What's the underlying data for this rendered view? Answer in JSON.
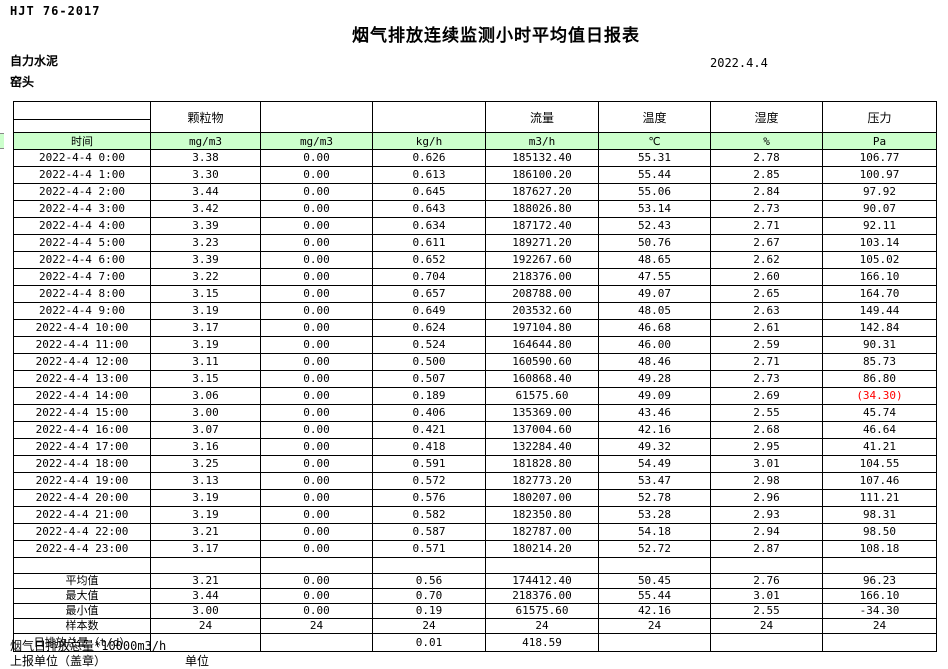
{
  "doc": {
    "standard": "HJT  76-2017",
    "title": "烟气排放连续监测小时平均值日报表",
    "company": "自力水泥",
    "station": "窑头",
    "date": "2022.4.4"
  },
  "table": {
    "group_headers": [
      "",
      "颗粒物",
      "",
      "",
      "流量",
      "温度",
      "湿度",
      "压力"
    ],
    "unit_headers": [
      "时间",
      "mg/m3",
      "mg/m3",
      "kg/h",
      "m3/h",
      "℃",
      "%",
      "Pa"
    ],
    "rows": [
      {
        "time": "2022-4-4 0:00",
        "values": [
          "3.38",
          "0.00",
          "0.626",
          "185132.40",
          "55.31",
          "2.78",
          "106.77"
        ]
      },
      {
        "time": "2022-4-4 1:00",
        "values": [
          "3.30",
          "0.00",
          "0.613",
          "186100.20",
          "55.44",
          "2.85",
          "100.97"
        ]
      },
      {
        "time": "2022-4-4 2:00",
        "values": [
          "3.44",
          "0.00",
          "0.645",
          "187627.20",
          "55.06",
          "2.84",
          "97.92"
        ]
      },
      {
        "time": "2022-4-4 3:00",
        "values": [
          "3.42",
          "0.00",
          "0.643",
          "188026.80",
          "53.14",
          "2.73",
          "90.07"
        ]
      },
      {
        "time": "2022-4-4 4:00",
        "values": [
          "3.39",
          "0.00",
          "0.634",
          "187172.40",
          "52.43",
          "2.71",
          "92.11"
        ]
      },
      {
        "time": "2022-4-4 5:00",
        "values": [
          "3.23",
          "0.00",
          "0.611",
          "189271.20",
          "50.76",
          "2.67",
          "103.14"
        ]
      },
      {
        "time": "2022-4-4 6:00",
        "values": [
          "3.39",
          "0.00",
          "0.652",
          "192267.60",
          "48.65",
          "2.62",
          "105.02"
        ]
      },
      {
        "time": "2022-4-4 7:00",
        "values": [
          "3.22",
          "0.00",
          "0.704",
          "218376.00",
          "47.55",
          "2.60",
          "166.10"
        ]
      },
      {
        "time": "2022-4-4 8:00",
        "values": [
          "3.15",
          "0.00",
          "0.657",
          "208788.00",
          "49.07",
          "2.65",
          "164.70"
        ]
      },
      {
        "time": "2022-4-4 9:00",
        "values": [
          "3.19",
          "0.00",
          "0.649",
          "203532.60",
          "48.05",
          "2.63",
          "149.44"
        ]
      },
      {
        "time": "2022-4-4 10:00",
        "values": [
          "3.17",
          "0.00",
          "0.624",
          "197104.80",
          "46.68",
          "2.61",
          "142.84"
        ]
      },
      {
        "time": "2022-4-4 11:00",
        "values": [
          "3.19",
          "0.00",
          "0.524",
          "164644.80",
          "46.00",
          "2.59",
          "90.31"
        ]
      },
      {
        "time": "2022-4-4 12:00",
        "values": [
          "3.11",
          "0.00",
          "0.500",
          "160590.60",
          "48.46",
          "2.71",
          "85.73"
        ]
      },
      {
        "time": "2022-4-4 13:00",
        "values": [
          "3.15",
          "0.00",
          "0.507",
          "160868.40",
          "49.28",
          "2.73",
          "86.80"
        ]
      },
      {
        "time": "2022-4-4 14:00",
        "values": [
          "3.06",
          "0.00",
          "0.189",
          "61575.60",
          "49.09",
          "2.69",
          "(34.30)"
        ],
        "red_value_indices": [
          6
        ]
      },
      {
        "time": "2022-4-4 15:00",
        "values": [
          "3.00",
          "0.00",
          "0.406",
          "135369.00",
          "43.46",
          "2.55",
          "45.74"
        ]
      },
      {
        "time": "2022-4-4 16:00",
        "values": [
          "3.07",
          "0.00",
          "0.421",
          "137004.60",
          "42.16",
          "2.68",
          "46.64"
        ]
      },
      {
        "time": "2022-4-4 17:00",
        "values": [
          "3.16",
          "0.00",
          "0.418",
          "132284.40",
          "49.32",
          "2.95",
          "41.21"
        ]
      },
      {
        "time": "2022-4-4 18:00",
        "values": [
          "3.25",
          "0.00",
          "0.591",
          "181828.80",
          "54.49",
          "3.01",
          "104.55"
        ]
      },
      {
        "time": "2022-4-4 19:00",
        "values": [
          "3.13",
          "0.00",
          "0.572",
          "182773.20",
          "53.47",
          "2.98",
          "107.46"
        ]
      },
      {
        "time": "2022-4-4 20:00",
        "values": [
          "3.19",
          "0.00",
          "0.576",
          "180207.00",
          "52.78",
          "2.96",
          "111.21"
        ]
      },
      {
        "time": "2022-4-4 21:00",
        "values": [
          "3.19",
          "0.00",
          "0.582",
          "182350.80",
          "53.28",
          "2.93",
          "98.31"
        ]
      },
      {
        "time": "2022-4-4 22:00",
        "values": [
          "3.21",
          "0.00",
          "0.587",
          "182787.00",
          "54.18",
          "2.94",
          "98.50"
        ]
      },
      {
        "time": "2022-4-4 23:00",
        "values": [
          "3.17",
          "0.00",
          "0.571",
          "180214.20",
          "52.72",
          "2.87",
          "108.18"
        ]
      }
    ],
    "summary_rows": [
      {
        "label": "平均值",
        "values": [
          "3.21",
          "0.00",
          "0.56",
          "174412.40",
          "50.45",
          "2.76",
          "96.23"
        ]
      },
      {
        "label": "最大值",
        "values": [
          "3.44",
          "0.00",
          "0.70",
          "218376.00",
          "55.44",
          "3.01",
          "166.10"
        ]
      },
      {
        "label": "最小值",
        "values": [
          "3.00",
          "0.00",
          "0.19",
          "61575.60",
          "42.16",
          "2.55",
          "-34.30"
        ]
      },
      {
        "label": "样本数",
        "values": [
          "24",
          "24",
          "24",
          "24",
          "24",
          "24",
          "24"
        ]
      },
      {
        "label": "日排放总量（t/d）",
        "values": [
          "",
          "",
          "0.01",
          "418.59",
          "",
          "",
          ""
        ],
        "tall": true
      }
    ]
  },
  "footer": {
    "note": "烟气日排放总量*10000m3/h",
    "report_unit_label": "上报单位（盖章）",
    "unit_label": "单位"
  },
  "colors": {
    "header_green": "#ccffcc",
    "alert_red": "#ff0000"
  }
}
